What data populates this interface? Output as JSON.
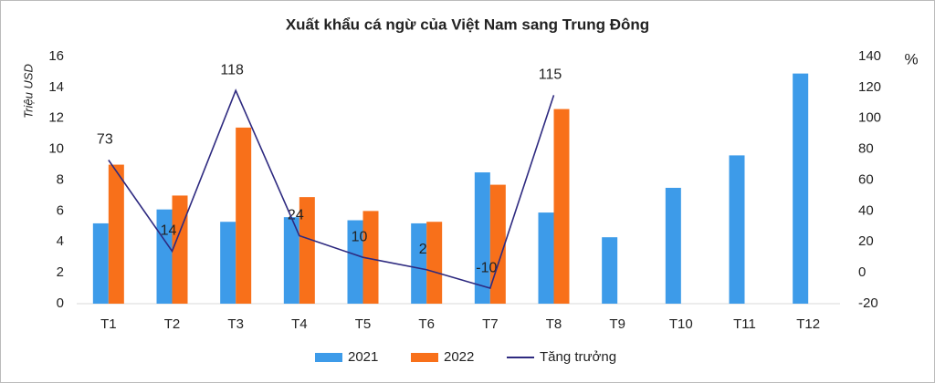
{
  "chart_data": {
    "type": "bar",
    "title": "Xuất khẩu cá ngừ của Việt Nam sang Trung Đông",
    "ylabel": "Triệu USD",
    "y2label": "%",
    "categories": [
      "T1",
      "T2",
      "T3",
      "T4",
      "T5",
      "T6",
      "T7",
      "T8",
      "T9",
      "T10",
      "T11",
      "T12"
    ],
    "series": [
      {
        "name": "2021",
        "color": "#3d9be9",
        "type": "bar",
        "values": [
          5.2,
          6.1,
          5.3,
          5.6,
          5.4,
          5.2,
          8.5,
          5.9,
          4.3,
          7.5,
          9.6,
          14.9
        ]
      },
      {
        "name": "2022",
        "color": "#f8701a",
        "type": "bar",
        "values": [
          9.0,
          7.0,
          11.4,
          6.9,
          6.0,
          5.3,
          7.7,
          12.6,
          null,
          null,
          null,
          null
        ]
      },
      {
        "name": "Tăng trưởng",
        "color": "#2e2a80",
        "type": "line",
        "axis": "y2",
        "values": [
          73,
          14,
          118,
          24,
          10,
          2,
          -10,
          115,
          null,
          null,
          null,
          null
        ]
      }
    ],
    "ylim": [
      0,
      16
    ],
    "yticks": [
      0,
      2,
      4,
      6,
      8,
      10,
      12,
      14,
      16
    ],
    "y2lim": [
      -20,
      140
    ],
    "y2ticks": [
      -20,
      0,
      20,
      40,
      60,
      80,
      100,
      120,
      140
    ],
    "legend": "bottom"
  }
}
